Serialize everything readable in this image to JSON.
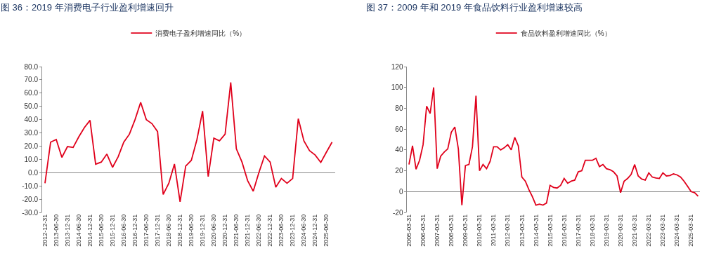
{
  "chart_data": [
    {
      "type": "line",
      "title": "图 36：2019 年消费电子行业盈利增速回升",
      "legend": "top",
      "categories": [
        "2012-12-31",
        null,
        "2013-06-30",
        null,
        "2013-12-31",
        null,
        "2014-06-30",
        null,
        "2014-12-31",
        null,
        "2015-06-30",
        null,
        "2015-12-31",
        null,
        "2016-06-30",
        null,
        "2016-12-31",
        null,
        "2017-06-30",
        null,
        "2017-12-31",
        null,
        "2018-06-30",
        null,
        "2018-12-31",
        null,
        "2019-06-30",
        null,
        "2019-12-31",
        null,
        "2020-06-30",
        null,
        "2020-12-31",
        null,
        "2021-06-30",
        null,
        "2021-12-31",
        null,
        "2022-06-30",
        null,
        "2022-12-31",
        null,
        "2023-06-30",
        null,
        "2023-12-31",
        null,
        "2024-06-30",
        null,
        "2024-12-31",
        null,
        "2025-06-30",
        null
      ],
      "series": [
        {
          "name": "消费电子盈利增速同比（%）",
          "color": "#e0001b",
          "values": [
            -8,
            23,
            25,
            11.5,
            19.7,
            19,
            27,
            34,
            39.5,
            6.4,
            8,
            14,
            4,
            12,
            23,
            29,
            40,
            53,
            40,
            37,
            31,
            -16.5,
            -8,
            6.5,
            -22,
            5,
            9.3,
            25,
            46.5,
            -3,
            26,
            24,
            29,
            68,
            18,
            8,
            -6,
            -14,
            0,
            12.6,
            8,
            -11,
            -4.4,
            -8,
            -4.4,
            40.7,
            24,
            16.6,
            13.3,
            7.7,
            15.5,
            23
          ]
        }
      ],
      "ylim": [
        -30,
        80
      ],
      "yticks": [
        {
          "value": -30,
          "label": "-30.0"
        },
        {
          "value": -20,
          "label": "-20.0"
        },
        {
          "value": -10,
          "label": "-10.0"
        },
        {
          "value": 0,
          "label": "0.0"
        },
        {
          "value": 10,
          "label": "10.0"
        },
        {
          "value": 20,
          "label": "20.0"
        },
        {
          "value": 30,
          "label": "30.0"
        },
        {
          "value": 40,
          "label": "40.0"
        },
        {
          "value": 50,
          "label": "50.0"
        },
        {
          "value": 60,
          "label": "60.0"
        },
        {
          "value": 70,
          "label": "70.0"
        },
        {
          "value": 80,
          "label": "80.0"
        }
      ]
    },
    {
      "type": "line",
      "title": "图 37：2009 年和 2019 年食品饮料行业盈利增速较高",
      "legend": "top",
      "categories": [
        "2005-03-31",
        null,
        null,
        null,
        "2006-03-31",
        null,
        null,
        null,
        "2007-03-31",
        null,
        null,
        null,
        "2008-03-31",
        null,
        null,
        null,
        "2009-03-31",
        null,
        null,
        null,
        "2010-03-31",
        null,
        null,
        null,
        "2011-03-31",
        null,
        null,
        null,
        "2012-03-31",
        null,
        null,
        null,
        "2013-03-31",
        null,
        null,
        null,
        "2014-03-31",
        null,
        null,
        null,
        "2015-03-31",
        null,
        null,
        null,
        "2016-03-31",
        null,
        null,
        null,
        "2017-03-31",
        null,
        null,
        null,
        "2018-03-31",
        null,
        null,
        null,
        "2019-03-31",
        null,
        null,
        null,
        "2020-03-31",
        null,
        null,
        null,
        "2021-03-31",
        null,
        null,
        null,
        "2022-03-31",
        null,
        null,
        null,
        "2023-03-31",
        null,
        null,
        null,
        "2024-03-31",
        null,
        null,
        null,
        "2025-03-31",
        null,
        null
      ],
      "series": [
        {
          "name": "食品饮料盈利增速同比（%）",
          "color": "#e0001b",
          "values": [
            26,
            44,
            21.5,
            30,
            45,
            82,
            75,
            100,
            22,
            34,
            38,
            41,
            57,
            62,
            41,
            -13,
            25,
            26,
            43,
            92,
            20,
            26,
            22,
            29,
            43,
            43,
            40,
            42,
            45,
            40,
            52,
            44,
            14,
            10,
            2,
            -5,
            -13,
            -12,
            -13,
            -11,
            6,
            4,
            3.4,
            6,
            12.6,
            8,
            10,
            11,
            19,
            20,
            30,
            30,
            30,
            32,
            24,
            26,
            22,
            21,
            19,
            15,
            -1,
            10,
            12.6,
            16.5,
            26,
            15,
            12,
            11,
            18,
            14,
            13,
            12.6,
            18,
            15,
            15.4,
            17,
            16,
            14,
            10,
            5,
            0,
            -1,
            -4.5
          ]
        }
      ],
      "ylim": [
        -20,
        120
      ],
      "yticks": [
        -20,
        0,
        20,
        40,
        60,
        80,
        100,
        120
      ]
    }
  ]
}
